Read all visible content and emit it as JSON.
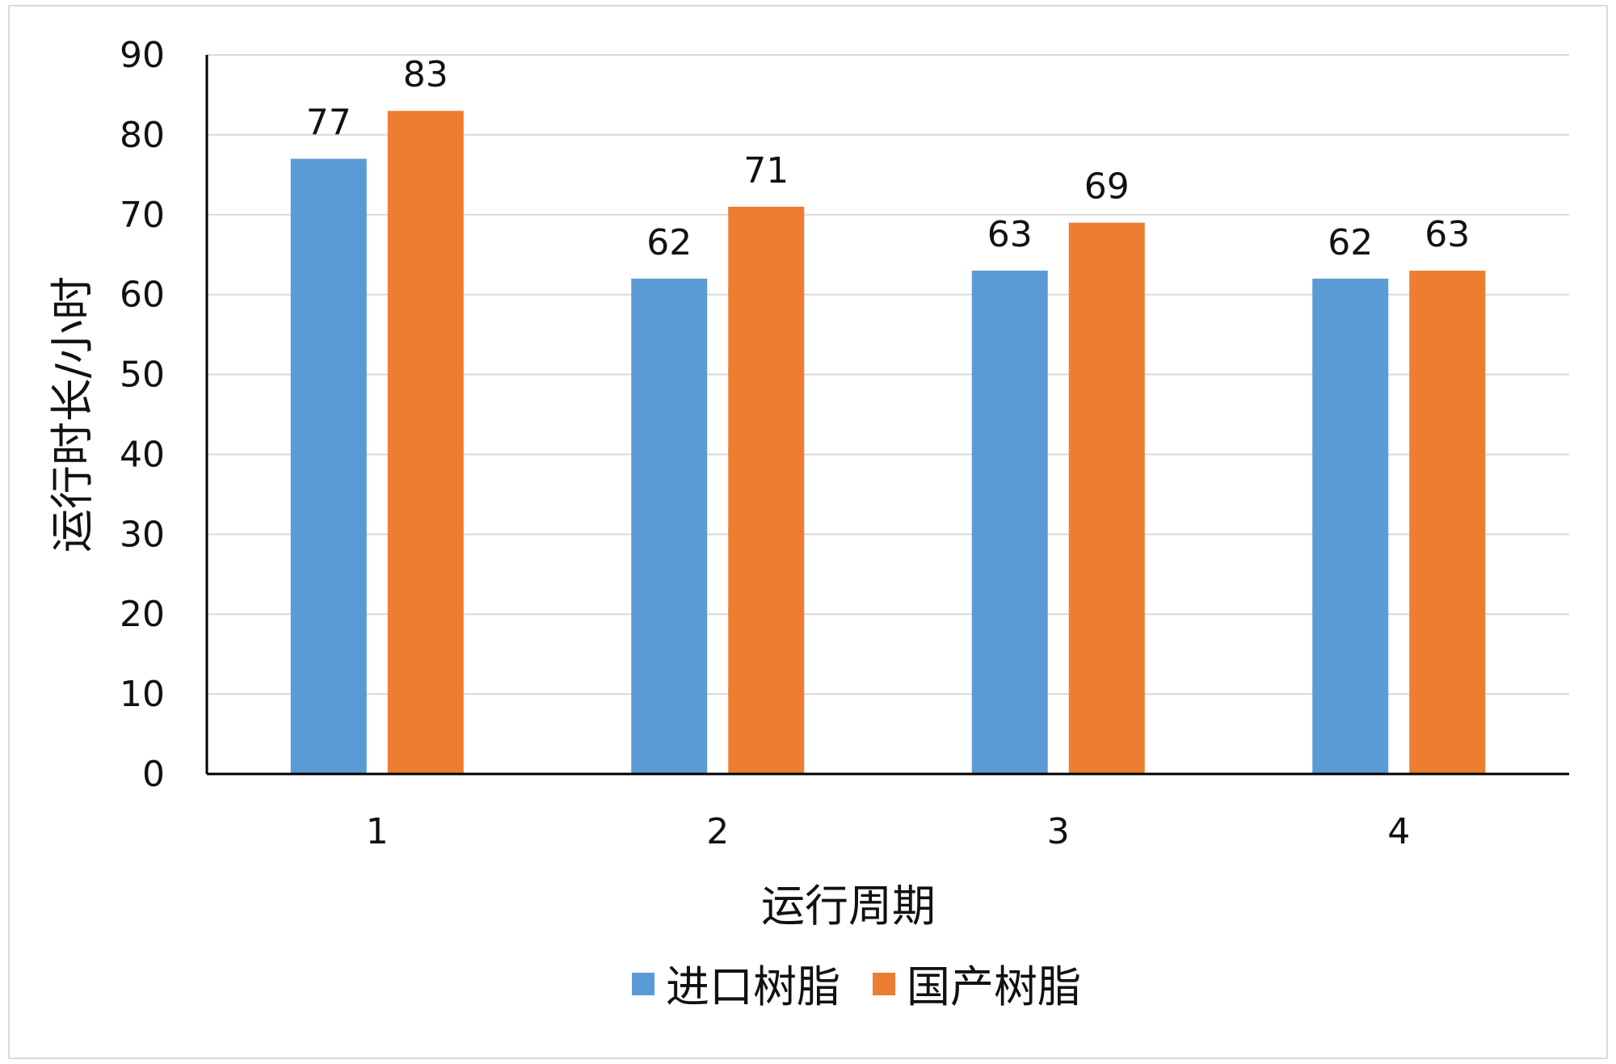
{
  "chart_data": {
    "type": "bar",
    "title": "",
    "xlabel": "运行周期",
    "ylabel": "运行时长/小时",
    "categories": [
      "1",
      "2",
      "3",
      "4"
    ],
    "series": [
      {
        "name": "进口树脂",
        "color": "#5B9BD5",
        "values": [
          77,
          62,
          63,
          62
        ]
      },
      {
        "name": "国产树脂",
        "color": "#ED7D31",
        "values": [
          83,
          71,
          69,
          63
        ]
      }
    ],
    "ylim": [
      0,
      90
    ],
    "yticks": [
      "0",
      "10",
      "20",
      "30",
      "40",
      "50",
      "60",
      "70",
      "80",
      "90"
    ],
    "grid": true,
    "legend_position": "bottom",
    "data_labels": true
  }
}
